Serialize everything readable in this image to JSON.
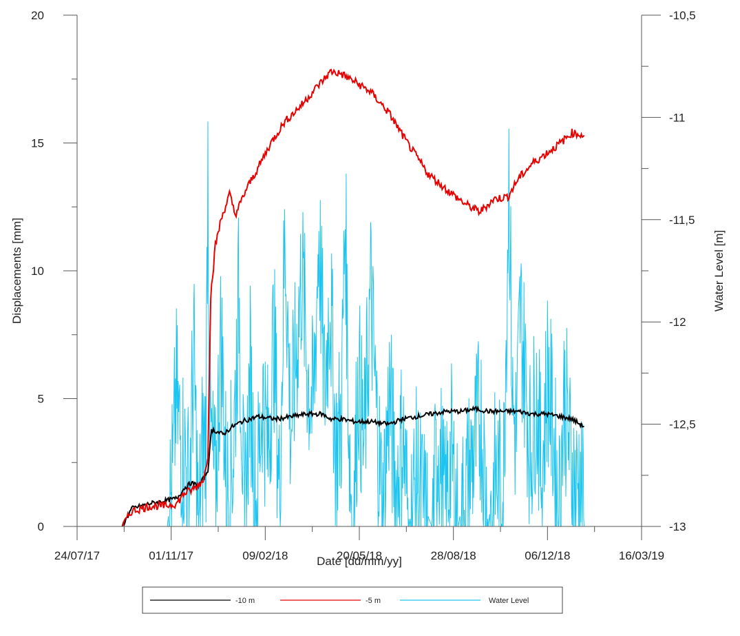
{
  "chart_data": {
    "type": "line",
    "xlabel": "Date [dd/mm/yy]",
    "ylabel": "Displacements [mm]",
    "y2label": "Water Level [m]",
    "x_ticks": [
      "24/07/17",
      "01/11/17",
      "09/02/18",
      "20/05/18",
      "28/08/18",
      "06/12/18",
      "16/03/19"
    ],
    "x_range": [
      "2017-07-24",
      "2019-03-16"
    ],
    "ylim": [
      0,
      20
    ],
    "y_ticks": [
      "0",
      "5",
      "10",
      "15",
      "20"
    ],
    "y2lim": [
      -13,
      -10.5
    ],
    "y2_ticks": [
      "-13",
      "-12,5",
      "-12",
      "-11,5",
      "-11",
      "-10,5"
    ],
    "grid": false,
    "legend_position": "bottom",
    "series": [
      {
        "name": "-10 m",
        "color": "#000000",
        "axis": "left",
        "x": [
          "2017-09-10",
          "2017-09-20",
          "2017-10-10",
          "2017-10-25",
          "2017-11-07",
          "2017-11-15",
          "2017-11-22",
          "2017-11-30",
          "2017-12-06",
          "2017-12-10",
          "2017-12-14",
          "2017-12-20",
          "2017-12-26",
          "2018-01-05",
          "2018-01-15",
          "2018-02-01",
          "2018-02-20",
          "2018-03-10",
          "2018-03-25",
          "2018-04-10",
          "2018-04-20",
          "2018-05-01",
          "2018-05-15",
          "2018-06-01",
          "2018-06-20",
          "2018-07-05",
          "2018-07-20",
          "2018-08-05",
          "2018-08-20",
          "2018-09-05",
          "2018-09-20",
          "2018-10-05",
          "2018-10-20",
          "2018-11-05",
          "2018-11-20",
          "2018-12-05",
          "2018-12-20",
          "2019-01-01",
          "2019-01-14"
        ],
        "y": [
          0.0,
          0.7,
          0.9,
          1.0,
          1.1,
          1.5,
          1.7,
          1.6,
          1.9,
          2.2,
          3.8,
          3.7,
          3.6,
          3.9,
          4.1,
          4.3,
          4.2,
          4.3,
          4.4,
          4.4,
          4.2,
          4.2,
          4.1,
          4.1,
          4.0,
          4.2,
          4.3,
          4.4,
          4.5,
          4.5,
          4.6,
          4.5,
          4.5,
          4.5,
          4.4,
          4.4,
          4.3,
          4.2,
          3.9
        ]
      },
      {
        "name": "-5 m",
        "color": "#e60000",
        "axis": "left",
        "x": [
          "2017-09-10",
          "2017-09-20",
          "2017-10-10",
          "2017-10-25",
          "2017-11-07",
          "2017-11-15",
          "2017-11-22",
          "2017-11-30",
          "2017-12-06",
          "2017-12-10",
          "2017-12-13",
          "2017-12-18",
          "2017-12-24",
          "2018-01-02",
          "2018-01-08",
          "2018-01-12",
          "2018-01-20",
          "2018-02-01",
          "2018-02-15",
          "2018-03-01",
          "2018-03-20",
          "2018-04-05",
          "2018-04-20",
          "2018-05-01",
          "2018-05-15",
          "2018-06-01",
          "2018-06-20",
          "2018-07-10",
          "2018-08-01",
          "2018-08-20",
          "2018-09-10",
          "2018-09-25",
          "2018-10-10",
          "2018-10-25",
          "2018-11-05",
          "2018-11-20",
          "2018-12-05",
          "2018-12-20",
          "2019-01-01",
          "2019-01-14"
        ],
        "y": [
          0.0,
          0.6,
          0.8,
          0.8,
          0.9,
          1.3,
          1.4,
          1.6,
          1.9,
          2.8,
          9.0,
          11.0,
          12.0,
          13.0,
          12.2,
          12.5,
          13.2,
          14.0,
          15.0,
          15.8,
          16.5,
          17.2,
          17.8,
          17.7,
          17.4,
          17.0,
          16.2,
          15.0,
          13.8,
          13.2,
          12.6,
          12.3,
          12.8,
          12.9,
          13.6,
          14.2,
          14.6,
          15.0,
          15.4,
          15.3
        ]
      },
      {
        "name": "Water Level",
        "color": "#1ec4f0",
        "axis": "right",
        "x": [
          "2017-09-10",
          "2017-09-25",
          "2017-10-08",
          "2017-10-20",
          "2017-10-28",
          "2017-11-03",
          "2017-11-06",
          "2017-11-10",
          "2017-11-15",
          "2017-11-20",
          "2017-11-25",
          "2017-11-30",
          "2017-12-04",
          "2017-12-08",
          "2017-12-10",
          "2017-12-12",
          "2017-12-14",
          "2017-12-18",
          "2017-12-24",
          "2017-12-30",
          "2018-01-06",
          "2018-01-12",
          "2018-01-18",
          "2018-01-24",
          "2018-01-30",
          "2018-02-06",
          "2018-02-12",
          "2018-02-18",
          "2018-02-24",
          "2018-03-02",
          "2018-03-08",
          "2018-03-14",
          "2018-03-20",
          "2018-03-26",
          "2018-04-01",
          "2018-04-07",
          "2018-04-13",
          "2018-04-19",
          "2018-04-25",
          "2018-05-01",
          "2018-05-05",
          "2018-05-09",
          "2018-05-13",
          "2018-05-19",
          "2018-05-25",
          "2018-06-01",
          "2018-06-07",
          "2018-06-14",
          "2018-06-21",
          "2018-06-28",
          "2018-07-05",
          "2018-07-12",
          "2018-07-20",
          "2018-07-28",
          "2018-08-05",
          "2018-08-12",
          "2018-08-19",
          "2018-08-26",
          "2018-09-02",
          "2018-09-10",
          "2018-09-18",
          "2018-09-26",
          "2018-10-04",
          "2018-10-12",
          "2018-10-20",
          "2018-10-26",
          "2018-10-30",
          "2018-11-03",
          "2018-11-07",
          "2018-11-12",
          "2018-11-18",
          "2018-11-24",
          "2018-11-30",
          "2018-12-06",
          "2018-12-12",
          "2018-12-18",
          "2018-12-24",
          "2018-12-30",
          "2019-01-05",
          "2019-01-10",
          "2019-01-14"
        ],
        "y": [
          -13,
          -13,
          -13,
          -13,
          -13,
          -12.7,
          -12.3,
          -12.5,
          -12.6,
          -12.8,
          -12.1,
          -13,
          -12.6,
          -12.5,
          -11.1,
          -12.4,
          -12.6,
          -12.8,
          -12.0,
          -12.8,
          -12.6,
          -11.8,
          -13,
          -12.2,
          -12.9,
          -12.3,
          -12.6,
          -12.0,
          -12.8,
          -11.5,
          -12.5,
          -12.1,
          -11.7,
          -12.2,
          -12.4,
          -11.5,
          -12.3,
          -11.8,
          -12.6,
          -12.4,
          -11.4,
          -12.5,
          -13,
          -12.2,
          -12.6,
          -11.8,
          -12.4,
          -12.9,
          -12.3,
          -12.8,
          -12.5,
          -13,
          -12.7,
          -12.9,
          -13,
          -12.5,
          -12.9,
          -12.6,
          -13,
          -12.8,
          -12.6,
          -12.4,
          -13,
          -12.7,
          -12.8,
          -11.2,
          -12.4,
          -12.5,
          -11.9,
          -12.2,
          -12.6,
          -12.3,
          -12.7,
          -12.2,
          -12.5,
          -12.9,
          -12.3,
          -12.6,
          -12.8,
          -12.7,
          -13
        ]
      }
    ]
  }
}
